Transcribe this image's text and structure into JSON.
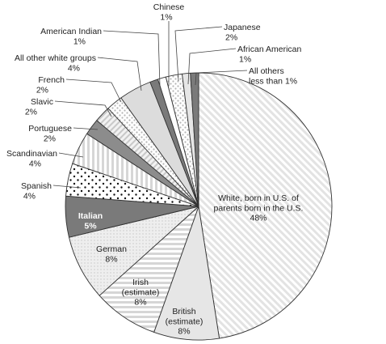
{
  "chart_data": {
    "type": "pie",
    "title": "",
    "start_angle_deg": 0,
    "direction": "clockwise",
    "slices": [
      {
        "label": "White, born in U.S. of parents born in the U.S.",
        "value": 48,
        "value_label": "48%",
        "pattern": "diag-white"
      },
      {
        "label": "British (estimate)",
        "value": 8,
        "value_label": "8%",
        "pattern": "light-gray"
      },
      {
        "label": "Irish (estimate)",
        "value": 8,
        "value_label": "8%",
        "pattern": "horiz-stripes"
      },
      {
        "label": "German",
        "value": 8,
        "value_label": "8%",
        "pattern": "light-dots"
      },
      {
        "label": "Italian",
        "value": 5,
        "value_label": "5%",
        "pattern": "dark-gray"
      },
      {
        "label": "Spanish",
        "value": 4,
        "value_label": "4%",
        "pattern": "black-dots"
      },
      {
        "label": "Scandinavian",
        "value": 4,
        "value_label": "4%",
        "pattern": "vert-stripes"
      },
      {
        "label": "Portuguese",
        "value": 2,
        "value_label": "2%",
        "pattern": "medium-gray"
      },
      {
        "label": "Slavic",
        "value": 2,
        "value_label": "2%",
        "pattern": "diag-gray"
      },
      {
        "label": "French",
        "value": 2,
        "value_label": "2%",
        "pattern": "gray-dots"
      },
      {
        "label": "All other white groups",
        "value": 4,
        "value_label": "4%",
        "pattern": "lighter-gray"
      },
      {
        "label": "American Indian",
        "value": 1,
        "value_label": "1%",
        "pattern": "dark-gray"
      },
      {
        "label": "Chinese",
        "value": 1,
        "value_label": "1%",
        "pattern": "white"
      },
      {
        "label": "Japanese",
        "value": 2,
        "value_label": "2%",
        "pattern": "gray-dots"
      },
      {
        "label": "African American",
        "value": 1,
        "value_label": "1%",
        "pattern": "light-gray"
      },
      {
        "label": "All others less than 1%",
        "value": 1,
        "value_label": "",
        "pattern": "dark-gray"
      }
    ],
    "labels": [
      {
        "slice": 0,
        "lines": [
          "White, born in U.S. of",
          "parents born in the U.S.",
          "48%"
        ],
        "mode": "inside"
      },
      {
        "slice": 1,
        "lines": [
          "British",
          "(estimate)",
          "8%"
        ],
        "mode": "inside"
      },
      {
        "slice": 2,
        "lines": [
          "Irish",
          "(estimate)",
          "8%"
        ],
        "mode": "inside"
      },
      {
        "slice": 3,
        "lines": [
          "German",
          "8%"
        ],
        "mode": "inside"
      },
      {
        "slice": 4,
        "lines": [
          "Italian",
          "5%"
        ],
        "mode": "inside-bold-white"
      },
      {
        "slice": 5,
        "lines": [
          "Spanish",
          "4%"
        ],
        "mode": "callout"
      },
      {
        "slice": 6,
        "lines": [
          "Scandinavian",
          "4%"
        ],
        "mode": "callout"
      },
      {
        "slice": 7,
        "lines": [
          "Portuguese",
          "2%"
        ],
        "mode": "callout"
      },
      {
        "slice": 8,
        "lines": [
          "Slavic",
          "2%"
        ],
        "mode": "callout"
      },
      {
        "slice": 9,
        "lines": [
          "French",
          "2%"
        ],
        "mode": "callout"
      },
      {
        "slice": 10,
        "lines": [
          "All other white groups",
          "4%"
        ],
        "mode": "callout"
      },
      {
        "slice": 11,
        "lines": [
          "American Indian",
          "1%"
        ],
        "mode": "callout"
      },
      {
        "slice": 12,
        "lines": [
          "Chinese",
          "1%"
        ],
        "mode": "callout"
      },
      {
        "slice": 13,
        "lines": [
          "Japanese",
          "2%"
        ],
        "mode": "callout"
      },
      {
        "slice": 14,
        "lines": [
          "African American",
          "1%"
        ],
        "mode": "callout"
      },
      {
        "slice": 15,
        "lines": [
          "All others",
          "less than 1%"
        ],
        "mode": "callout"
      }
    ],
    "colors": {
      "outline": "#333333",
      "text": "#222222",
      "light_gray": "#e6e6e6",
      "lighter_gray": "#dcdcdc",
      "medium_gray": "#8c8c8c",
      "dark_gray": "#7a7a7a",
      "stripe_gray": "#cfcfcf"
    }
  }
}
